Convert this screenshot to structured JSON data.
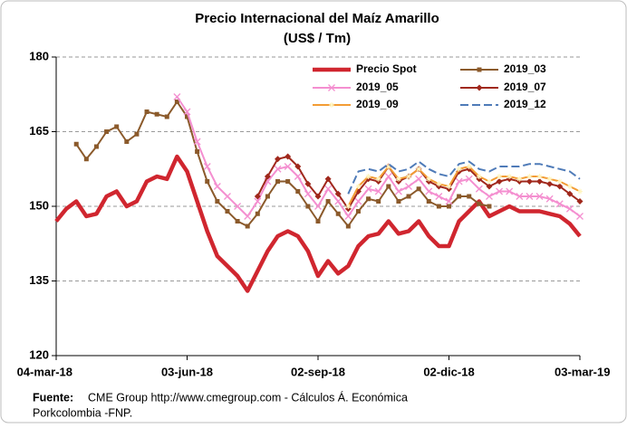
{
  "chart_data": {
    "type": "line",
    "title": "Precio Internacional del Maíz Amarillo",
    "subtitle": "(US$ / Tm)",
    "x": [
      "2018-03-04",
      "2018-03-11",
      "2018-03-18",
      "2018-03-25",
      "2018-04-01",
      "2018-04-08",
      "2018-04-15",
      "2018-04-22",
      "2018-04-29",
      "2018-05-06",
      "2018-05-13",
      "2018-05-20",
      "2018-05-27",
      "2018-06-03",
      "2018-06-10",
      "2018-06-17",
      "2018-06-24",
      "2018-07-01",
      "2018-07-08",
      "2018-07-15",
      "2018-07-22",
      "2018-07-29",
      "2018-08-05",
      "2018-08-12",
      "2018-08-19",
      "2018-08-26",
      "2018-09-02",
      "2018-09-09",
      "2018-09-16",
      "2018-09-23",
      "2018-09-30",
      "2018-10-07",
      "2018-10-14",
      "2018-10-21",
      "2018-10-28",
      "2018-11-04",
      "2018-11-11",
      "2018-11-18",
      "2018-11-25",
      "2018-12-02",
      "2018-12-09",
      "2018-12-16",
      "2018-12-23",
      "2018-12-30",
      "2019-01-06",
      "2019-01-13",
      "2019-01-20",
      "2019-01-27",
      "2019-02-03",
      "2019-02-10",
      "2019-02-17",
      "2019-02-24",
      "2019-03-03"
    ],
    "xlim": [
      "2018-03-04",
      "2019-03-03"
    ],
    "xticks": [
      {
        "value": "2018-03-04",
        "label": "04-mar-18"
      },
      {
        "value": "2018-06-03",
        "label": "03-jun-18"
      },
      {
        "value": "2018-09-02",
        "label": "02-sep-18"
      },
      {
        "value": "2018-12-02",
        "label": "02-dic-18"
      },
      {
        "value": "2019-03-03",
        "label": "03-mar-19"
      }
    ],
    "ylim": [
      120,
      180
    ],
    "yticks": [
      120,
      135,
      150,
      165,
      180
    ],
    "grid": true,
    "series": [
      {
        "name": "Precio Spot",
        "color": "#d0262f",
        "line_style": "thick",
        "marker": "none",
        "values": [
          147,
          149.5,
          151,
          148,
          148.5,
          152,
          153,
          150,
          151,
          155,
          156,
          155.5,
          160,
          157,
          151,
          145,
          140,
          138,
          136,
          133,
          137,
          141,
          144,
          145,
          144,
          141,
          136,
          139,
          136.5,
          138,
          142,
          144,
          144.5,
          147,
          144.5,
          145,
          147,
          144,
          142,
          142,
          147,
          149,
          151,
          148,
          149,
          150,
          149,
          149,
          149,
          148.5,
          148,
          146.5,
          144
        ]
      },
      {
        "name": "2019_03",
        "color": "#8b5a2b",
        "line_style": "solid",
        "marker": "square",
        "values": [
          null,
          null,
          162.5,
          159.5,
          162,
          165,
          166,
          163,
          164.5,
          169,
          168.5,
          168,
          171,
          168,
          161,
          155,
          151,
          149,
          147,
          146,
          148.5,
          152,
          155,
          155,
          153,
          150,
          147,
          151,
          148.5,
          146,
          149,
          151.5,
          151,
          154,
          151,
          152,
          153.5,
          151,
          150,
          150,
          152,
          152,
          150.5,
          150,
          null,
          null,
          null,
          null,
          null,
          null,
          null,
          null,
          null
        ]
      },
      {
        "name": "2019_05",
        "color": "#f48fd0",
        "line_style": "solid",
        "marker": "x",
        "values": [
          null,
          null,
          null,
          null,
          null,
          null,
          null,
          null,
          null,
          null,
          null,
          null,
          172,
          169,
          163,
          158,
          154,
          152,
          150,
          148,
          151,
          155,
          157.5,
          158,
          156,
          152.5,
          150,
          153.5,
          151,
          148,
          151,
          153.5,
          153,
          156,
          153,
          154,
          155.5,
          153,
          152,
          151,
          155,
          155.5,
          153.5,
          152,
          153,
          153,
          152,
          152,
          152,
          151.5,
          150.5,
          149.5,
          148
        ]
      },
      {
        "name": "2019_07",
        "color": "#a0281c",
        "line_style": "solid",
        "marker": "diamond",
        "values": [
          null,
          null,
          null,
          null,
          null,
          null,
          null,
          null,
          null,
          null,
          null,
          null,
          null,
          null,
          null,
          null,
          null,
          null,
          null,
          null,
          152,
          156,
          159.5,
          160,
          158,
          154.5,
          152,
          155.5,
          152.5,
          149.5,
          153,
          155.5,
          155,
          158,
          155,
          156,
          157.5,
          155,
          154,
          153.5,
          157,
          157.5,
          155.5,
          154,
          155,
          155.5,
          155,
          155,
          155,
          154.5,
          154,
          152.5,
          151
        ]
      },
      {
        "name": "2019_09",
        "color": "#f39c34",
        "line_style": "solid",
        "marker": "star",
        "values": [
          null,
          null,
          null,
          null,
          null,
          null,
          null,
          null,
          null,
          null,
          null,
          null,
          null,
          null,
          null,
          null,
          null,
          null,
          null,
          null,
          null,
          null,
          null,
          null,
          null,
          null,
          null,
          null,
          null,
          150,
          154,
          156,
          155.5,
          158,
          155.5,
          156,
          157.5,
          155.5,
          154.5,
          154,
          157.5,
          158,
          156,
          155,
          156,
          156,
          155.5,
          156,
          156,
          155.5,
          155,
          154,
          153
        ]
      },
      {
        "name": "2019_12",
        "color": "#4f7bb8",
        "line_style": "dashed",
        "marker": "none",
        "values": [
          null,
          null,
          null,
          null,
          null,
          null,
          null,
          null,
          null,
          null,
          null,
          null,
          null,
          null,
          null,
          null,
          null,
          null,
          null,
          null,
          null,
          null,
          null,
          null,
          null,
          null,
          null,
          null,
          null,
          152.5,
          157,
          157.5,
          157,
          158.5,
          157,
          157.5,
          159,
          157.5,
          156.5,
          156,
          158.5,
          159,
          157.5,
          157,
          158,
          158,
          158,
          158.5,
          158.5,
          158,
          157.5,
          157,
          155.5
        ]
      }
    ],
    "source_label": "Fuente:",
    "source_text": "CME  Group http://www.cmegroup.com - Cálculos Á. Económica",
    "source_line2": "Porkcolombia  -FNP."
  }
}
